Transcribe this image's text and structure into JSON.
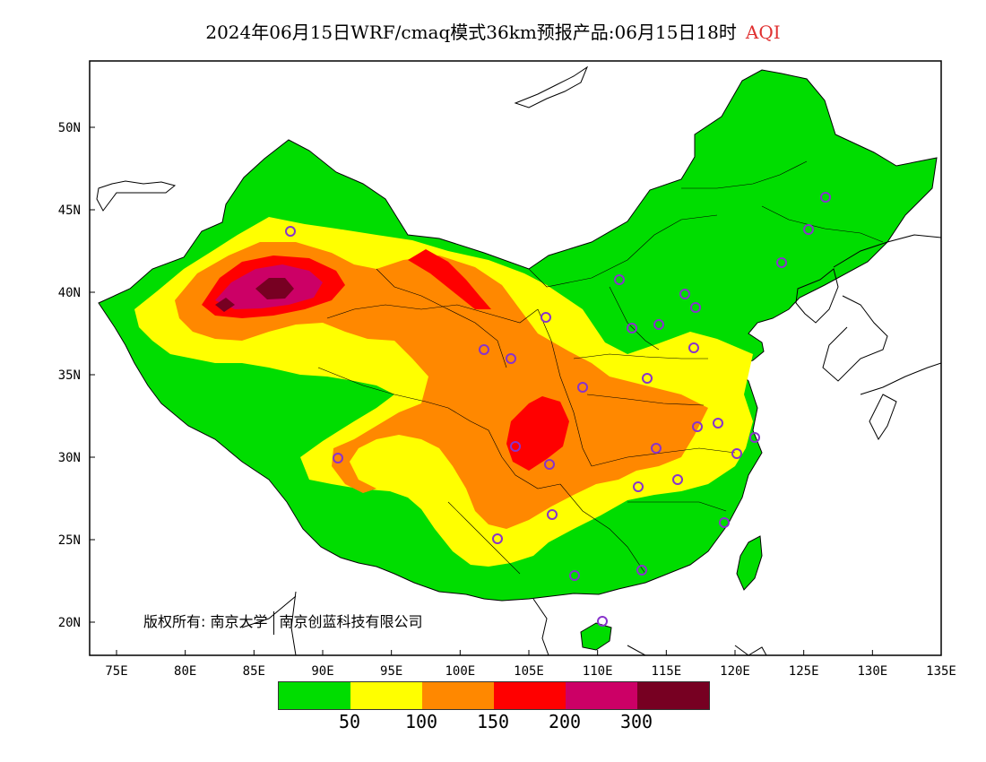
{
  "title": {
    "main": "2024年06月15日WRF/cmaq模式36km预报产品:06月15日18时",
    "variable": "AQI"
  },
  "axes": {
    "lat_ticks": [
      "20N",
      "25N",
      "30N",
      "35N",
      "40N",
      "45N",
      "50N"
    ],
    "lon_ticks": [
      "75E",
      "80E",
      "85E",
      "90E",
      "95E",
      "100E",
      "105E",
      "110E",
      "115E",
      "120E",
      "125E",
      "130E",
      "135E"
    ]
  },
  "copyright": {
    "owner_label": "版权所有:",
    "org1": "南京大学",
    "org2": "南京创蓝科技有限公司"
  },
  "legend": {
    "colors": [
      "#00dd00",
      "#ffff00",
      "#ff8800",
      "#ff0000",
      "#cc0066",
      "#770022"
    ],
    "labels": [
      "50",
      "100",
      "150",
      "200",
      "300"
    ]
  },
  "colors": {
    "ocean": "#ffffff",
    "station_marker": "#8833cc"
  }
}
